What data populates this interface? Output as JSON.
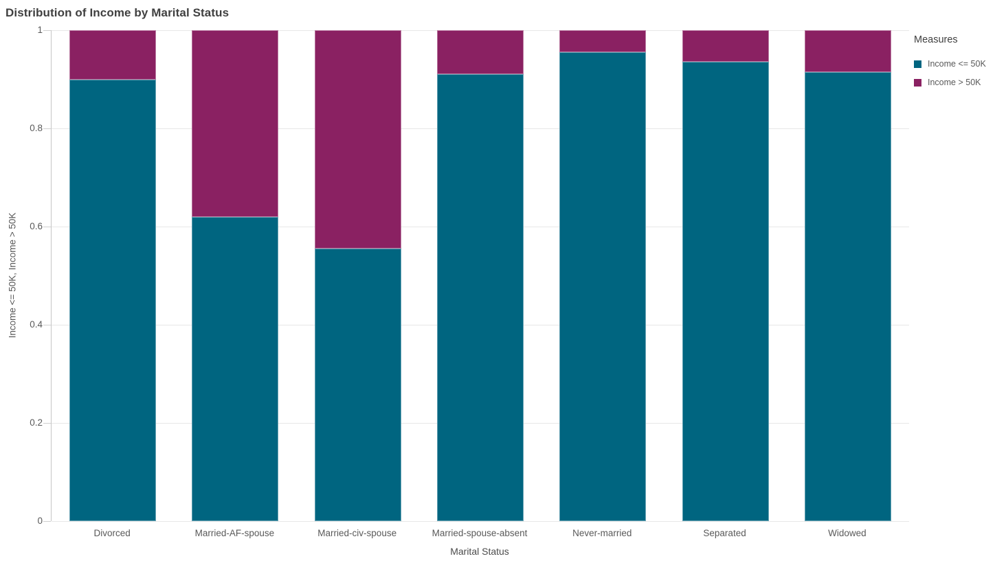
{
  "title": "Distribution of Income by Marital Status",
  "chart_data": {
    "type": "bar",
    "stacked": true,
    "normalized": true,
    "title": "Distribution of Income by Marital Status",
    "xlabel": "Marital Status",
    "ylabel": "Income <= 50K, Income > 50K",
    "categories": [
      "Divorced",
      "Married-AF-spouse",
      "Married-civ-spouse",
      "Married-spouse-absent",
      "Never-married",
      "Separated",
      "Widowed"
    ],
    "series": [
      {
        "name": "Income <= 50K",
        "color": "#006580",
        "values": [
          0.9,
          0.62,
          0.555,
          0.91,
          0.955,
          0.935,
          0.915
        ]
      },
      {
        "name": "Income > 50K",
        "color": "#8A2162",
        "values": [
          0.1,
          0.38,
          0.445,
          0.09,
          0.045,
          0.065,
          0.085
        ]
      }
    ],
    "ylim": [
      0,
      1
    ],
    "yticks": [
      0,
      0.2,
      0.4,
      0.6,
      0.8,
      1
    ],
    "ytick_labels": [
      "0",
      "0.2",
      "0.4",
      "0.6",
      "0.8",
      "1"
    ],
    "grid": true,
    "legend_title": "Measures",
    "legend_position": "right",
    "colors": {
      "grid": "#e7e7e7",
      "axis": "#c6c6c6",
      "tick_text": "#595959",
      "title_text": "#404040"
    }
  }
}
